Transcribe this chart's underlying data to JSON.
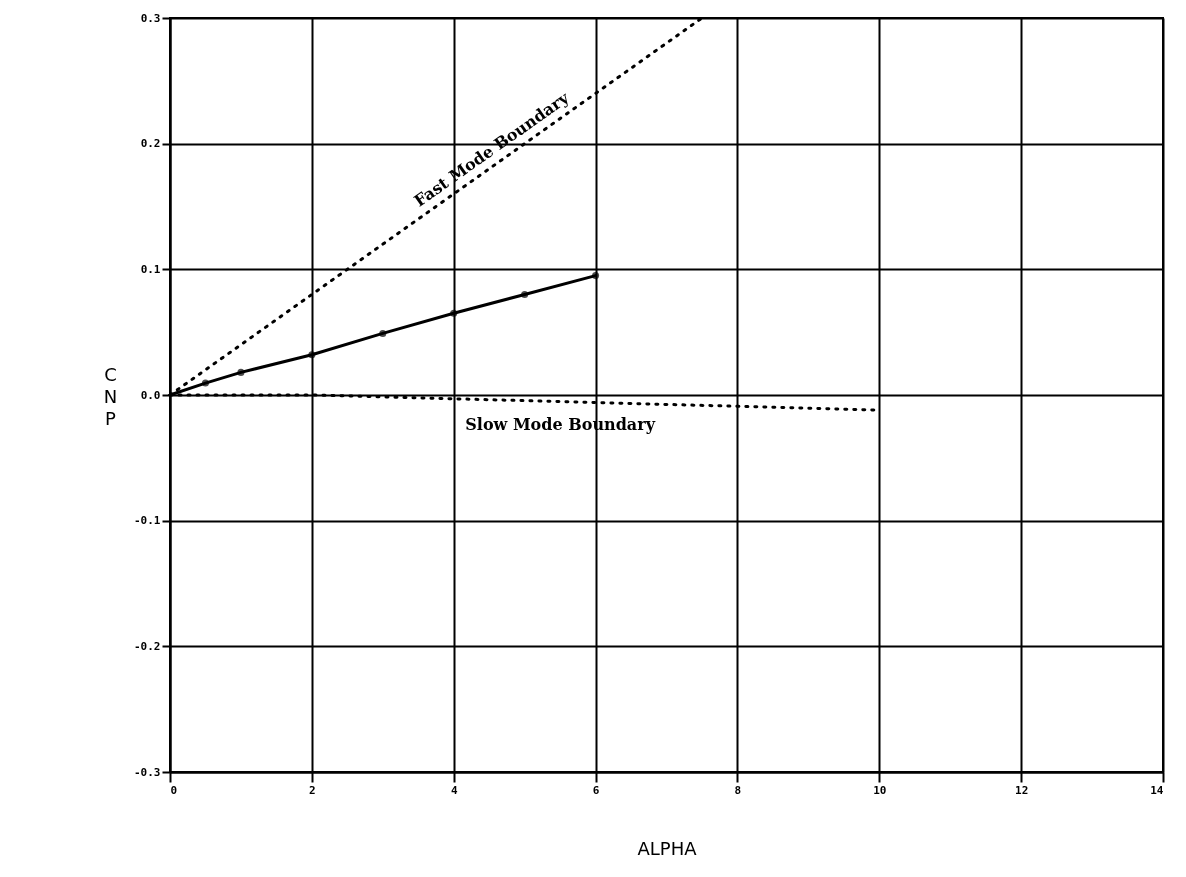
{
  "chart_data": {
    "type": "line",
    "xlabel": "ALPHA",
    "ylabel": "CNP",
    "xlim": [
      0,
      14
    ],
    "xticks": [
      0,
      2,
      4,
      6,
      8,
      10,
      12,
      14
    ],
    "ylim": [
      -0.3,
      0.3
    ],
    "yticks": [
      {
        "value": -0.3,
        "label": "-0.3"
      },
      {
        "value": -0.2,
        "label": "-0.2"
      },
      {
        "value": -0.1,
        "label": "-0.1"
      },
      {
        "value": 0,
        "label": "0.0"
      },
      {
        "value": 0.1,
        "label": "0.1"
      },
      {
        "value": 0.2,
        "label": "0.2"
      },
      {
        "value": 0.3,
        "label": "0.3"
      }
    ],
    "grid": true,
    "series": [
      {
        "color": "#000000",
        "marker": "circle",
        "line_style": "solid",
        "x": [
          0,
          0.5,
          1,
          2,
          3,
          4,
          5,
          6
        ],
        "values": [
          0,
          0.0095,
          0.018,
          0.032,
          0.049,
          0.065,
          0.08,
          0.095
        ]
      },
      {
        "name": "Fast Mode Boundary",
        "color": "#000000",
        "line_style": "dotted",
        "x": [
          0,
          7.5
        ],
        "values": [
          0,
          0.3
        ]
      },
      {
        "name": "Slow Mode Boundary",
        "color": "#000000",
        "line_style": "dotted",
        "x": [
          0,
          2,
          4,
          6,
          8,
          10
        ],
        "values": [
          0,
          0,
          -0.003,
          -0.006,
          -0.009,
          -0.012
        ]
      }
    ]
  }
}
